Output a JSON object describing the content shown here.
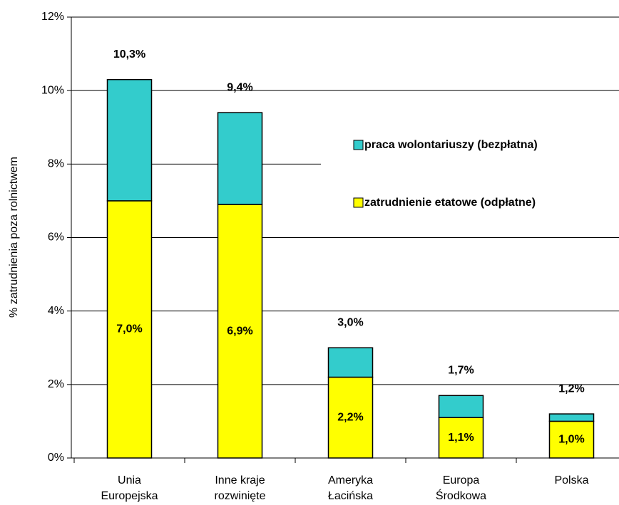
{
  "chart_data": {
    "type": "stacked_bar",
    "y_label": "% zatrudnienia poza rolnictwem",
    "categories": [
      "Unia\nEuropejska",
      "Inne kraje\nrozwinięte",
      "Ameryka\nŁacińska",
      "Europa\nŚrodkowa",
      "Polska"
    ],
    "series": [
      {
        "name": "zatrudnienie etatowe (odpłatne)",
        "color": "#ffff00",
        "values": [
          7.0,
          6.9,
          2.2,
          1.1,
          1.0
        ],
        "value_labels": [
          "7,0%",
          "6,9%",
          "2,2%",
          "1,1%",
          "1,0%"
        ]
      },
      {
        "name": "praca wolontariuszy (bezpłatna)",
        "color": "#33cccc",
        "values": [
          3.3,
          2.5,
          0.8,
          0.6,
          0.2
        ]
      }
    ],
    "totals": [
      10.3,
      9.4,
      3.0,
      1.7,
      1.2
    ],
    "total_labels": [
      "10,3%",
      "9,4%",
      "3,0%",
      "1,7%",
      "1,2%"
    ],
    "ylim": [
      0,
      12
    ],
    "yticks": [
      {
        "value": 0,
        "label": "0%"
      },
      {
        "value": 2,
        "label": "2%"
      },
      {
        "value": 4,
        "label": "4%"
      },
      {
        "value": 6,
        "label": "6%"
      },
      {
        "value": 8,
        "label": "8%"
      },
      {
        "value": 10,
        "label": "10%"
      },
      {
        "value": 12,
        "label": "12%"
      }
    ],
    "grid": true
  }
}
